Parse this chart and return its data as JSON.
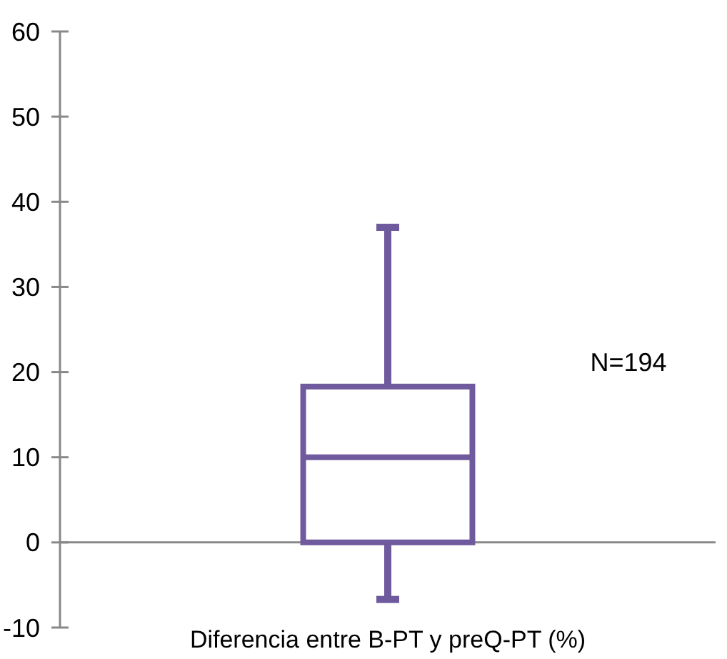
{
  "chart_data": {
    "type": "box",
    "categories": [
      "Diferencia entre B-PT y preQ-PT (%)"
    ],
    "boxes": [
      {
        "low": -6.7,
        "q1": 0,
        "median": 10,
        "q3": 18.3,
        "high": 37
      }
    ],
    "color": "#6f5a9e",
    "ylim": [
      -10,
      60
    ],
    "yticks": [
      -10,
      0,
      10,
      20,
      30,
      40,
      50,
      60
    ],
    "annotations": [
      "N=194"
    ]
  }
}
